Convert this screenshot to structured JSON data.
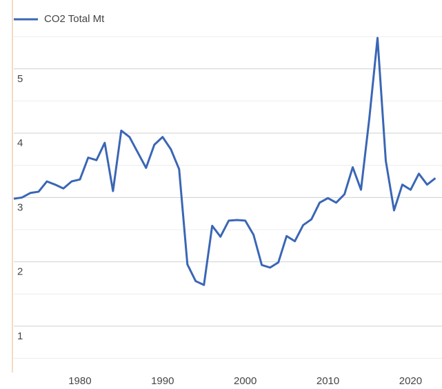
{
  "chart_data": {
    "type": "line",
    "legend": "top-left",
    "series": [
      {
        "name": "CO2 Total Mt",
        "color": "#3a66b5",
        "x": [
          1972,
          1973,
          1974,
          1975,
          1976,
          1977,
          1978,
          1979,
          1980,
          1981,
          1982,
          1983,
          1984,
          1985,
          1986,
          1987,
          1988,
          1989,
          1990,
          1991,
          1992,
          1993,
          1994,
          1995,
          1996,
          1997,
          1998,
          1999,
          2000,
          2001,
          2002,
          2003,
          2004,
          2005,
          2006,
          2007,
          2008,
          2009,
          2010,
          2011,
          2012,
          2013,
          2014,
          2015,
          2016,
          2017,
          2018,
          2019,
          2020,
          2021,
          2022,
          2023
        ],
        "values": [
          2.98,
          3.0,
          3.07,
          3.09,
          3.25,
          3.2,
          3.14,
          3.25,
          3.28,
          3.62,
          3.58,
          3.85,
          3.1,
          4.04,
          3.94,
          3.7,
          3.46,
          3.82,
          3.94,
          3.75,
          3.44,
          1.96,
          1.7,
          1.64,
          2.56,
          2.39,
          2.64,
          2.65,
          2.64,
          2.42,
          1.95,
          1.91,
          1.99,
          2.4,
          2.32,
          2.57,
          2.66,
          2.92,
          2.99,
          2.92,
          3.05,
          3.47,
          3.12,
          4.22,
          5.48,
          3.57,
          2.8,
          3.2,
          3.12,
          3.37,
          3.2,
          3.3
        ]
      }
    ],
    "xlim": [
      1972,
      2023.8
    ],
    "xticks": [
      1980,
      1990,
      2000,
      2010,
      2020
    ],
    "ylim": [
      0.28,
      6.07
    ],
    "yticks": [
      1,
      2,
      3,
      4,
      5
    ],
    "minor_yticks": [
      0.5,
      1.5,
      2.5,
      3.5,
      4.5,
      5.5
    ],
    "grid": true
  }
}
